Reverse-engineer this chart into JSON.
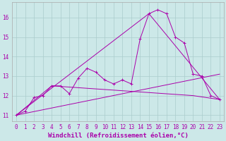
{
  "xlabel": "Windchill (Refroidissement éolien,°C)",
  "bg_color": "#cce8e8",
  "line_color": "#aa00aa",
  "grid_color": "#aacccc",
  "xlim": [
    -0.5,
    23.5
  ],
  "ylim": [
    10.7,
    16.8
  ],
  "xticks": [
    0,
    1,
    2,
    3,
    4,
    5,
    6,
    7,
    8,
    9,
    10,
    11,
    12,
    13,
    14,
    15,
    16,
    17,
    18,
    19,
    20,
    21,
    22,
    23
  ],
  "yticks": [
    11,
    12,
    13,
    14,
    15,
    16
  ],
  "line1_x": [
    0,
    1,
    2,
    3,
    4,
    5,
    6,
    7,
    8,
    9,
    10,
    11,
    12,
    13,
    14,
    15,
    16,
    17,
    18,
    19,
    20,
    21,
    22,
    23
  ],
  "line1_y": [
    11.0,
    11.2,
    11.9,
    12.0,
    12.5,
    12.5,
    12.1,
    12.9,
    13.4,
    13.2,
    12.8,
    12.6,
    12.8,
    12.6,
    14.9,
    16.2,
    16.4,
    16.2,
    15.0,
    14.7,
    13.1,
    13.0,
    12.0,
    11.8
  ],
  "line2_x": [
    0,
    23
  ],
  "line2_y": [
    11.0,
    13.1
  ],
  "line3_x": [
    0,
    15,
    23
  ],
  "line3_y": [
    11.0,
    16.2,
    11.8
  ],
  "line4_x": [
    0,
    4,
    20,
    23
  ],
  "line4_y": [
    11.0,
    12.5,
    12.0,
    11.8
  ],
  "tick_fontsize": 5.5,
  "label_fontsize": 6.5
}
